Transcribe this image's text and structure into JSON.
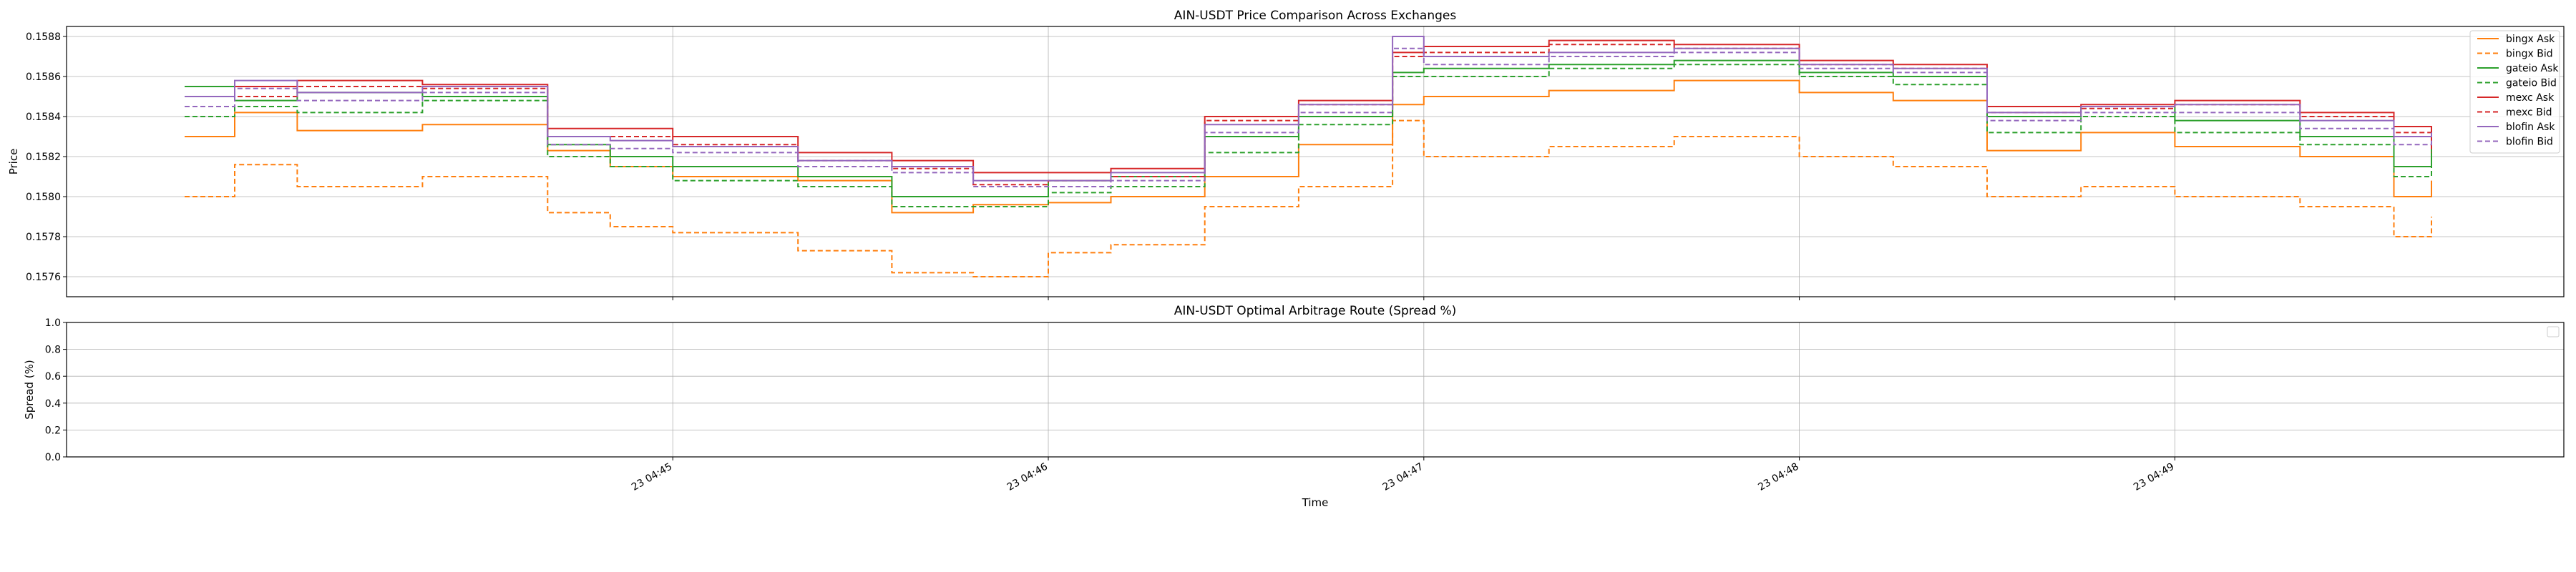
{
  "chart_data": [
    {
      "type": "line",
      "title": "AIN-USDT Price Comparison Across Exchanges",
      "xlabel": "",
      "ylabel": "Price",
      "x_range": [
        "04:43:42",
        "04:49:41"
      ],
      "ylim": [
        0.1575,
        0.15885
      ],
      "yticks": [
        "0.1576",
        "0.1578",
        "0.1580",
        "0.1582",
        "0.1584",
        "0.1586",
        "0.1588"
      ],
      "grid": true,
      "legend": "upper right",
      "series": [
        {
          "name": "bingx Ask",
          "color": "#ff7f0e",
          "dash": "solid",
          "x": [
            "04:43:42",
            "04:43:50",
            "04:44:00",
            "04:44:20",
            "04:44:40",
            "04:44:50",
            "04:45:00",
            "04:45:20",
            "04:45:35",
            "04:45:48",
            "04:46:00",
            "04:46:10",
            "04:46:25",
            "04:46:40",
            "04:46:55",
            "04:47:00",
            "04:47:20",
            "04:47:40",
            "04:48:00",
            "04:48:15",
            "04:48:30",
            "04:48:45",
            "04:49:00",
            "04:49:20",
            "04:49:35",
            "04:49:41"
          ],
          "values": [
            0.1583,
            0.15842,
            0.15833,
            0.15836,
            0.15823,
            0.15815,
            0.1581,
            0.15808,
            0.15792,
            0.15796,
            0.15797,
            0.158,
            0.1581,
            0.15826,
            0.15846,
            0.1585,
            0.15853,
            0.15858,
            0.15852,
            0.15848,
            0.15823,
            0.15832,
            0.15825,
            0.1582,
            0.158,
            0.15808
          ]
        },
        {
          "name": "bingx Bid",
          "color": "#ff7f0e",
          "dash": "dashed",
          "x": [
            "04:43:42",
            "04:43:50",
            "04:44:00",
            "04:44:20",
            "04:44:40",
            "04:44:50",
            "04:45:00",
            "04:45:20",
            "04:45:35",
            "04:45:48",
            "04:46:00",
            "04:46:10",
            "04:46:25",
            "04:46:40",
            "04:46:55",
            "04:47:00",
            "04:47:20",
            "04:47:40",
            "04:48:00",
            "04:48:15",
            "04:48:30",
            "04:48:45",
            "04:49:00",
            "04:49:20",
            "04:49:35",
            "04:49:41"
          ],
          "values": [
            0.158,
            0.15816,
            0.15805,
            0.1581,
            0.15792,
            0.15785,
            0.15782,
            0.15773,
            0.15762,
            0.1576,
            0.15772,
            0.15776,
            0.15795,
            0.15805,
            0.15838,
            0.1582,
            0.15825,
            0.1583,
            0.1582,
            0.15815,
            0.158,
            0.15805,
            0.158,
            0.15795,
            0.1578,
            0.1579
          ]
        },
        {
          "name": "gateio Ask",
          "color": "#2ca02c",
          "dash": "solid",
          "x": [
            "04:43:42",
            "04:43:50",
            "04:44:00",
            "04:44:20",
            "04:44:40",
            "04:44:50",
            "04:45:00",
            "04:45:20",
            "04:45:35",
            "04:45:48",
            "04:46:00",
            "04:46:10",
            "04:46:25",
            "04:46:40",
            "04:46:55",
            "04:47:00",
            "04:47:20",
            "04:47:40",
            "04:48:00",
            "04:48:15",
            "04:48:30",
            "04:48:45",
            "04:49:00",
            "04:49:20",
            "04:49:35",
            "04:49:41"
          ],
          "values": [
            0.15855,
            0.15848,
            0.15852,
            0.1585,
            0.15826,
            0.1582,
            0.15815,
            0.1581,
            0.158,
            0.158,
            0.15808,
            0.1581,
            0.1583,
            0.1584,
            0.15862,
            0.15864,
            0.15866,
            0.15868,
            0.15862,
            0.1586,
            0.1584,
            0.15845,
            0.15838,
            0.1583,
            0.15815,
            0.1583
          ]
        },
        {
          "name": "gateio Bid",
          "color": "#2ca02c",
          "dash": "dashed",
          "x": [
            "04:43:42",
            "04:43:50",
            "04:44:00",
            "04:44:20",
            "04:44:40",
            "04:44:50",
            "04:45:00",
            "04:45:20",
            "04:45:35",
            "04:45:48",
            "04:46:00",
            "04:46:10",
            "04:46:25",
            "04:46:40",
            "04:46:55",
            "04:47:00",
            "04:47:20",
            "04:47:40",
            "04:48:00",
            "04:48:15",
            "04:48:30",
            "04:48:45",
            "04:49:00",
            "04:49:20",
            "04:49:35",
            "04:49:41"
          ],
          "values": [
            0.1584,
            0.15845,
            0.15842,
            0.15848,
            0.1582,
            0.15815,
            0.15808,
            0.15805,
            0.15795,
            0.15795,
            0.15802,
            0.15805,
            0.15822,
            0.15836,
            0.1586,
            0.1586,
            0.15864,
            0.15866,
            0.1586,
            0.15856,
            0.15832,
            0.1584,
            0.15832,
            0.15826,
            0.1581,
            0.15825
          ]
        },
        {
          "name": "mexc Ask",
          "color": "#d62728",
          "dash": "solid",
          "x": [
            "04:43:42",
            "04:43:50",
            "04:44:00",
            "04:44:20",
            "04:44:40",
            "04:44:50",
            "04:45:00",
            "04:45:20",
            "04:45:35",
            "04:45:48",
            "04:46:00",
            "04:46:10",
            "04:46:25",
            "04:46:40",
            "04:46:55",
            "04:47:00",
            "04:47:20",
            "04:47:40",
            "04:48:00",
            "04:48:15",
            "04:48:30",
            "04:48:45",
            "04:49:00",
            "04:49:20",
            "04:49:35",
            "04:49:41"
          ],
          "values": [
            0.1585,
            0.15855,
            0.15858,
            0.15856,
            0.15834,
            0.15834,
            0.1583,
            0.15822,
            0.15818,
            0.15812,
            0.15812,
            0.15814,
            0.1584,
            0.15848,
            0.15872,
            0.15875,
            0.15878,
            0.15876,
            0.15868,
            0.15866,
            0.15845,
            0.15846,
            0.15848,
            0.15842,
            0.15835,
            0.15825
          ]
        },
        {
          "name": "mexc Bid",
          "color": "#d62728",
          "dash": "dashed",
          "x": [
            "04:43:42",
            "04:43:50",
            "04:44:00",
            "04:44:20",
            "04:44:40",
            "04:44:50",
            "04:45:00",
            "04:45:20",
            "04:45:35",
            "04:45:48",
            "04:46:00",
            "04:46:10",
            "04:46:25",
            "04:46:40",
            "04:46:55",
            "04:47:00",
            "04:47:20",
            "04:47:40",
            "04:48:00",
            "04:48:15",
            "04:48:30",
            "04:48:45",
            "04:49:00",
            "04:49:20",
            "04:49:35",
            "04:49:41"
          ],
          "values": [
            0.15845,
            0.1585,
            0.15855,
            0.15854,
            0.1583,
            0.1583,
            0.15826,
            0.15818,
            0.15814,
            0.15806,
            0.15808,
            0.1581,
            0.15838,
            0.15846,
            0.1587,
            0.15872,
            0.15876,
            0.15874,
            0.15866,
            0.15864,
            0.15842,
            0.15844,
            0.15846,
            0.1584,
            0.15832,
            0.15822
          ]
        },
        {
          "name": "blofin Ask",
          "color": "#9467bd",
          "dash": "solid",
          "x": [
            "04:43:42",
            "04:43:50",
            "04:44:00",
            "04:44:20",
            "04:44:40",
            "04:44:50",
            "04:45:00",
            "04:45:20",
            "04:45:35",
            "04:45:48",
            "04:46:00",
            "04:46:10",
            "04:46:25",
            "04:46:40",
            "04:46:55",
            "04:47:00",
            "04:47:20",
            "04:47:40",
            "04:48:00",
            "04:48:15",
            "04:48:30",
            "04:48:45",
            "04:49:00",
            "04:49:20",
            "04:49:35",
            "04:49:41"
          ],
          "values": [
            0.1585,
            0.15858,
            0.15852,
            0.15855,
            0.1583,
            0.15828,
            0.15825,
            0.15818,
            0.15815,
            0.15808,
            0.15808,
            0.15812,
            0.15836,
            0.15846,
            0.1588,
            0.1587,
            0.15872,
            0.15874,
            0.15866,
            0.15864,
            0.15842,
            0.15845,
            0.15846,
            0.15838,
            0.1583,
            0.15832
          ]
        },
        {
          "name": "blofin Bid",
          "color": "#9467bd",
          "dash": "dashed",
          "x": [
            "04:43:42",
            "04:43:50",
            "04:44:00",
            "04:44:20",
            "04:44:40",
            "04:44:50",
            "04:45:00",
            "04:45:20",
            "04:45:35",
            "04:45:48",
            "04:46:00",
            "04:46:10",
            "04:46:25",
            "04:46:40",
            "04:46:55",
            "04:47:00",
            "04:47:20",
            "04:47:40",
            "04:48:00",
            "04:48:15",
            "04:48:30",
            "04:48:45",
            "04:49:00",
            "04:49:20",
            "04:49:35",
            "04:49:41"
          ],
          "values": [
            0.15845,
            0.15854,
            0.15848,
            0.15852,
            0.15826,
            0.15824,
            0.15822,
            0.15815,
            0.15812,
            0.15805,
            0.15805,
            0.15808,
            0.15832,
            0.15842,
            0.15874,
            0.15866,
            0.1587,
            0.15872,
            0.15864,
            0.15862,
            0.15838,
            0.15842,
            0.15842,
            0.15834,
            0.15826,
            0.15828
          ]
        }
      ]
    },
    {
      "type": "line",
      "title": "AIN-USDT Optimal Arbitrage Route (Spread %)",
      "xlabel": "Time",
      "ylabel": "Spread (%)",
      "ylim": [
        0.0,
        1.0
      ],
      "yticks": [
        "0.0",
        "0.2",
        "0.4",
        "0.6",
        "0.8",
        "1.0"
      ],
      "xlim": [
        "04:43:42",
        "04:49:41"
      ],
      "xticks": [
        "23 04:45",
        "23 04:46",
        "23 04:47",
        "23 04:48",
        "23 04:49"
      ],
      "grid": true,
      "legend": "upper right",
      "series": []
    }
  ]
}
